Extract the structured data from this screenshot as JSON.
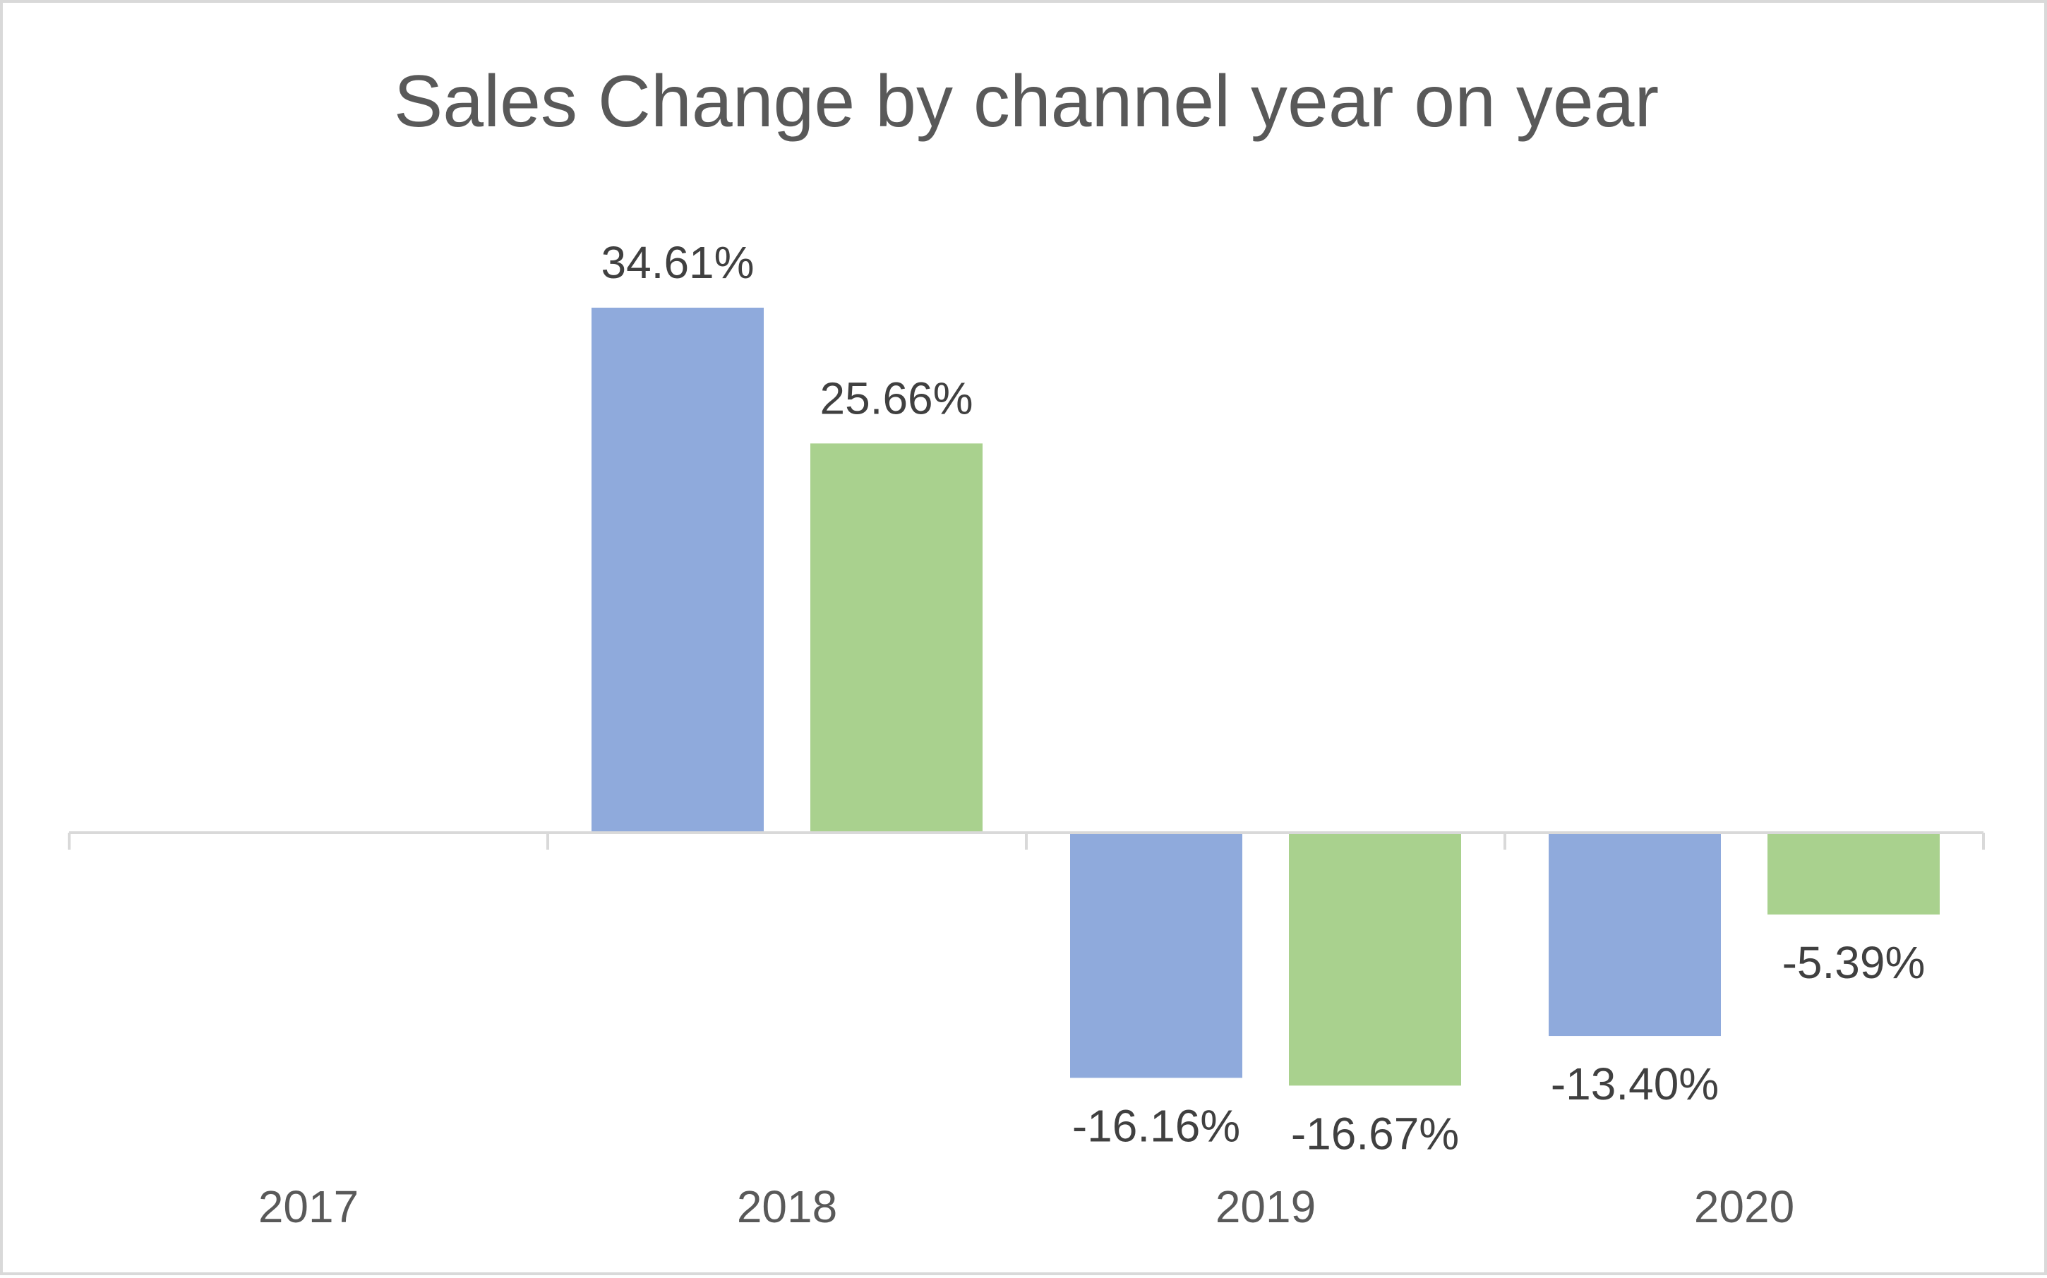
{
  "chart_data": {
    "type": "bar",
    "title": "Sales Change by channel year on year",
    "categories": [
      "2017",
      "2018",
      "2019",
      "2020"
    ],
    "series": [
      {
        "values": [
          null,
          34.61,
          -16.16,
          -13.4
        ],
        "labels": [
          "",
          "34.61%",
          "-16.16%",
          "-13.40%"
        ],
        "color": "#8faadc"
      },
      {
        "values": [
          null,
          25.66,
          -16.67,
          -5.39
        ],
        "labels": [
          "",
          "25.66%",
          "-16.67%",
          "-5.39%"
        ],
        "color": "#a9d18e"
      }
    ],
    "xlabel": "",
    "ylabel": "",
    "ylim": [
      -20,
      40
    ],
    "grid": false,
    "legend": "none",
    "axis_color": "#d9d9d9"
  }
}
